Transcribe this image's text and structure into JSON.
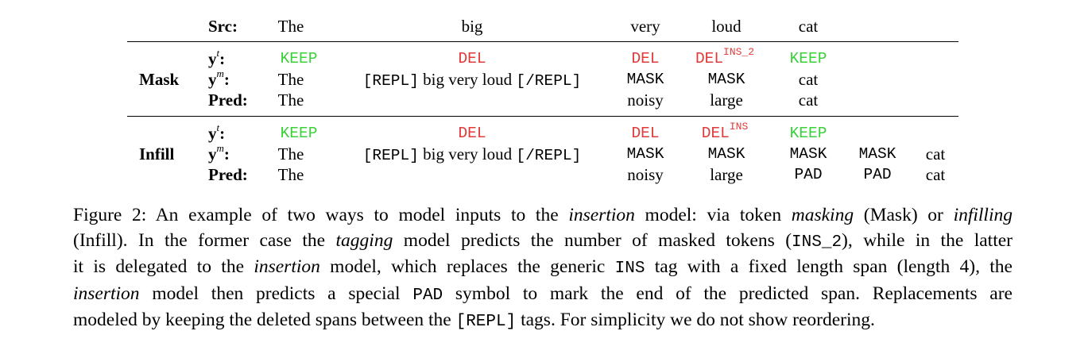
{
  "table": {
    "src_label": "Src:",
    "src_tokens": [
      "The",
      "big",
      "very",
      "loud",
      "cat"
    ],
    "mask": {
      "group_label": "Mask",
      "yt_label": "y",
      "yt_sup": "t",
      "ym_label": "y",
      "ym_sup": "m",
      "pred_label": "Pred:",
      "colon": ":",
      "yt": [
        "KEEP",
        "DEL",
        "DEL",
        "DEL",
        "INS_2",
        "KEEP"
      ],
      "ym": {
        "the": "The",
        "repl_open": "[REPL]",
        "repl_words": "big very loud",
        "repl_close": "[/REPL]",
        "c3": "MASK",
        "c4": "MASK",
        "c5": "cat"
      },
      "pred": [
        "The",
        "noisy",
        "large",
        "cat"
      ]
    },
    "infill": {
      "group_label": "Infill",
      "yt": [
        "KEEP",
        "DEL",
        "DEL",
        "DEL",
        "INS",
        "KEEP"
      ],
      "ym": {
        "the": "The",
        "repl_open": "[REPL]",
        "repl_words": "big very loud",
        "repl_close": "[/REPL]",
        "c3": "MASK",
        "c4": "MASK",
        "c5": "MASK",
        "c6": "MASK",
        "c7": "cat"
      },
      "pred": [
        "The",
        "noisy",
        "large",
        "PAD",
        "PAD",
        "cat"
      ]
    }
  },
  "caption": {
    "l1": [
      "Figure 2: An example of two ways to model inputs to the ",
      "insertion",
      " model: via token ",
      "masking",
      " (Mask) or ",
      "infilling"
    ],
    "l2": [
      "(Infill). In the former case the ",
      "tagging",
      " model predicts the number of masked tokens (",
      "INS_2",
      "), while in the latter"
    ],
    "l3": [
      "it is delegated to the ",
      "insertion",
      " model, which replaces the generic ",
      "INS",
      " tag with a fixed length span (length 4), the"
    ],
    "l4": [
      "insertion",
      " model then predicts a special ",
      "PAD",
      " symbol to mark the end of the predicted span.  Replacements are"
    ],
    "l5": [
      "modeled by keeping the deleted spans between the ",
      "[REPL]",
      " tags. For simplicity we do not show reordering."
    ]
  },
  "colors": {
    "keep": "#3ad13a",
    "del": "#e03a3a"
  }
}
